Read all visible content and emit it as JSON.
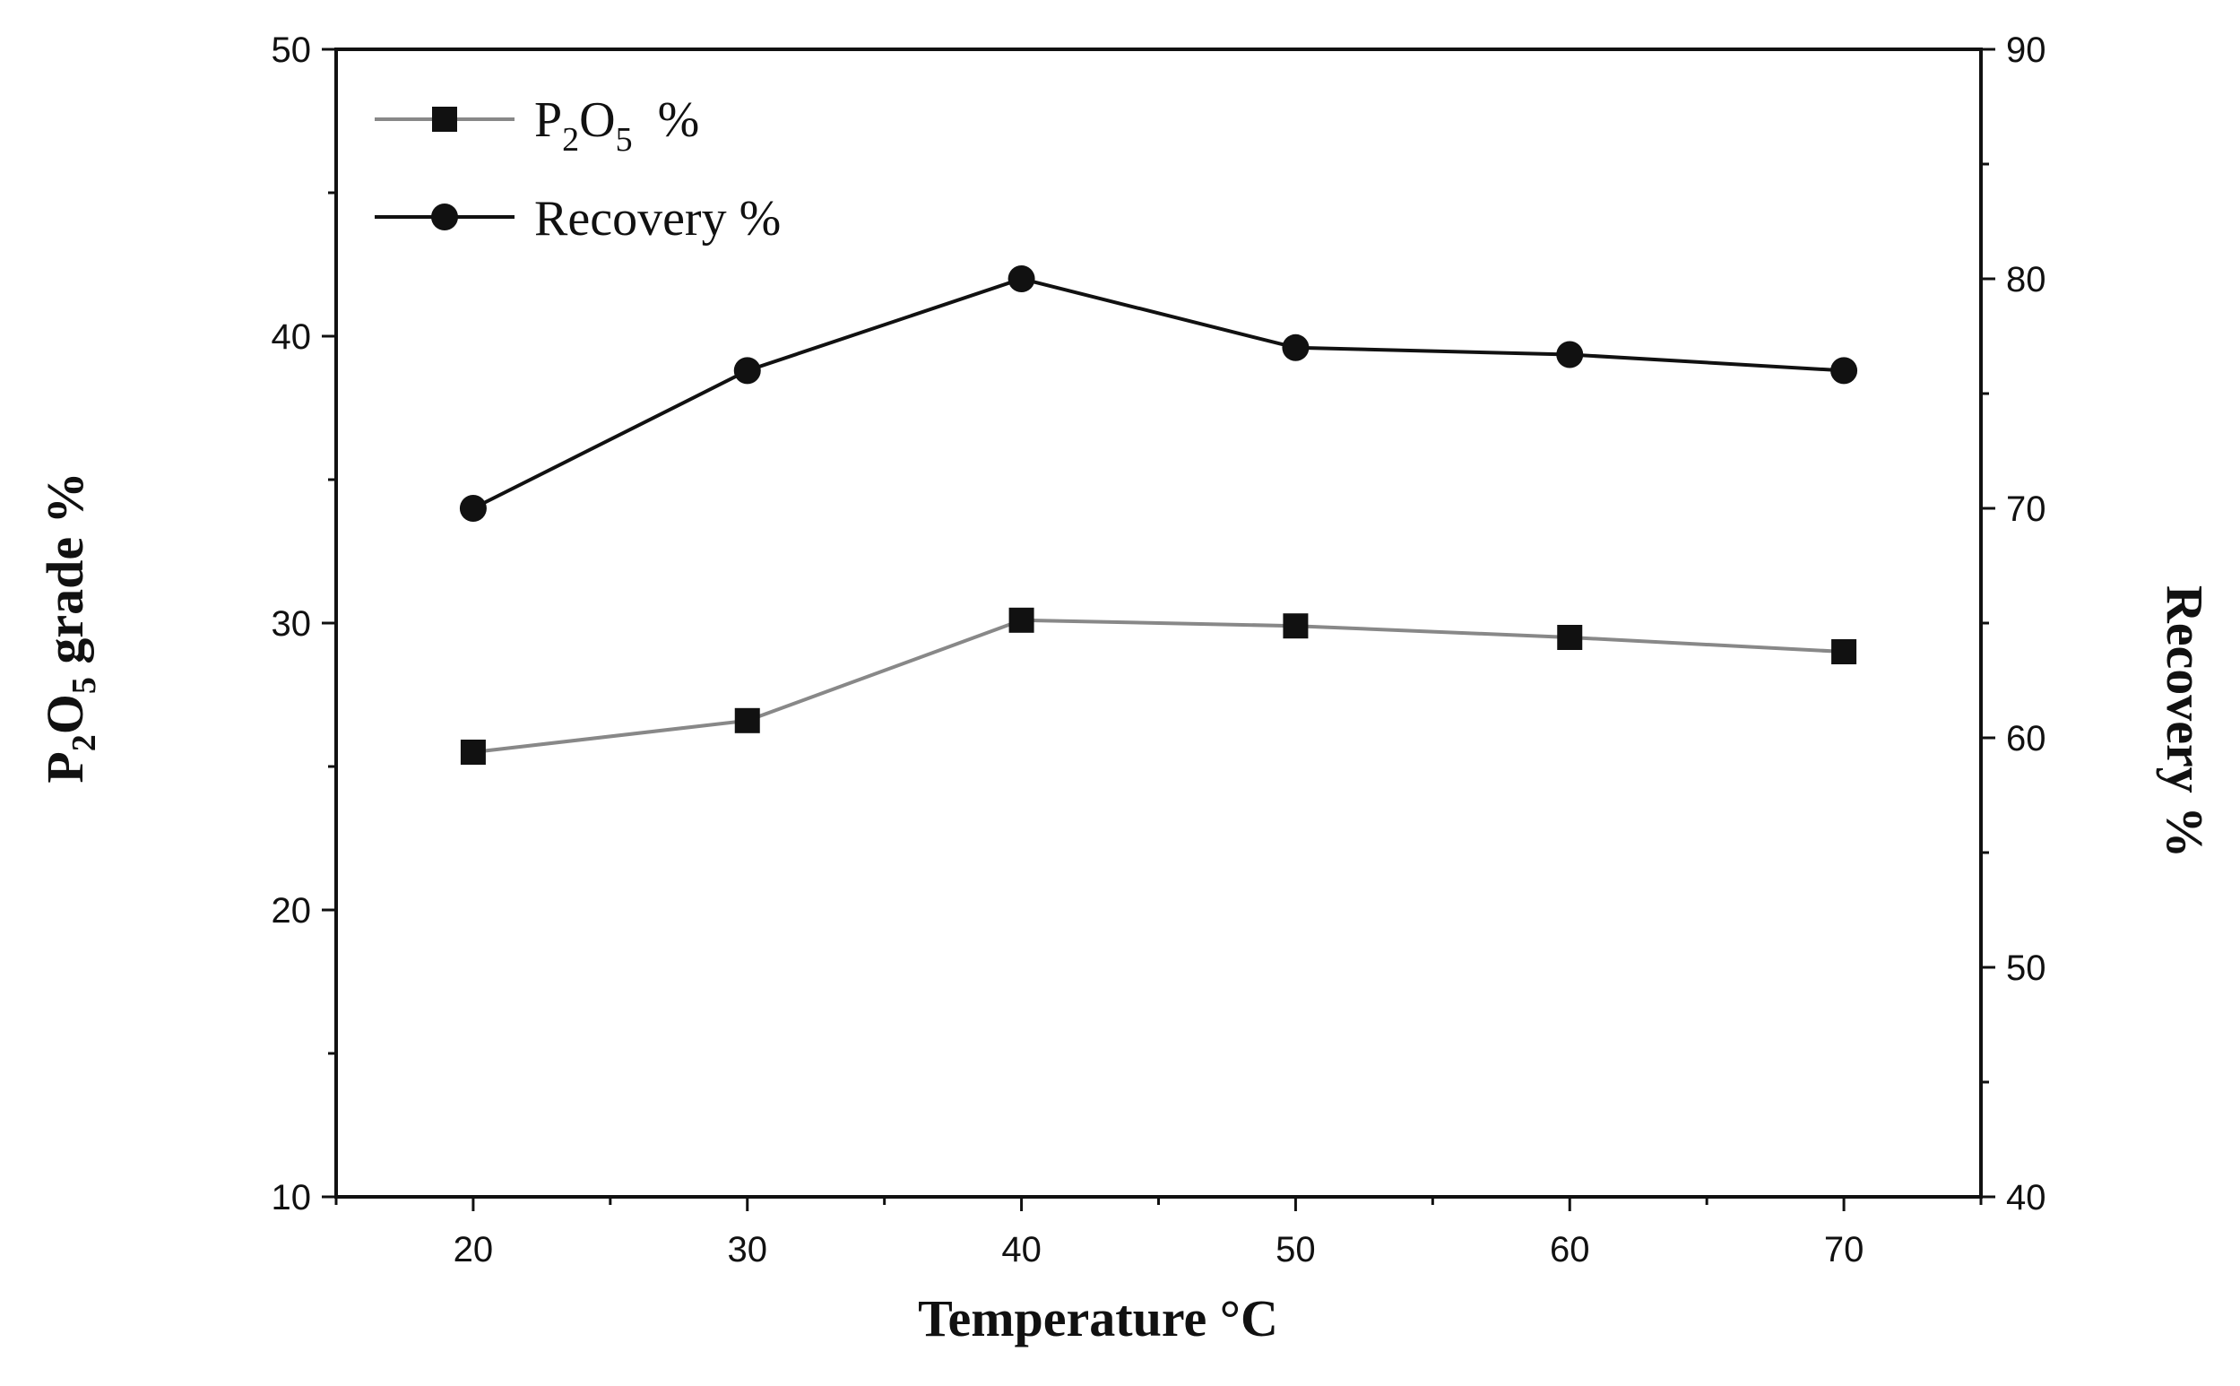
{
  "chart_data": {
    "type": "line",
    "x": [
      20,
      30,
      40,
      50,
      60,
      70
    ],
    "xlabel": "Temperature °C",
    "xlim": [
      15,
      75
    ],
    "x_major_ticks": [
      20,
      30,
      40,
      50,
      60,
      70
    ],
    "y_left": {
      "label_parts": [
        "P",
        "2",
        "O",
        "5",
        " grade %"
      ],
      "lim": [
        10,
        50
      ],
      "major_ticks": [
        10,
        20,
        30,
        40,
        50
      ]
    },
    "y_right": {
      "label": "Recovery %",
      "lim": [
        40,
        90
      ],
      "major_ticks": [
        40,
        50,
        60,
        70,
        80,
        90
      ]
    },
    "series": [
      {
        "name_parts": [
          "P",
          "2",
          "O",
          "5",
          "  %"
        ],
        "axis": "left",
        "marker": "square",
        "color": "#888888",
        "values": [
          25.5,
          26.6,
          30.1,
          29.9,
          29.5,
          29.0
        ]
      },
      {
        "name": "Recovery %",
        "axis": "right",
        "marker": "circle",
        "color": "#111111",
        "values": [
          70,
          76,
          80,
          77,
          76.7,
          76
        ]
      }
    ],
    "legend_position": "top-left",
    "grid": false
  }
}
